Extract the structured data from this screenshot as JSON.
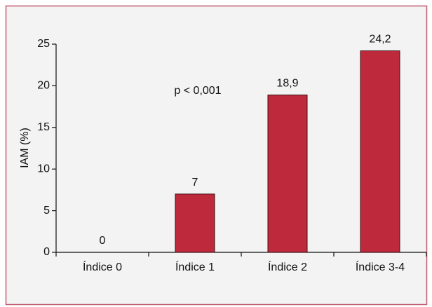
{
  "chart_data": {
    "type": "bar",
    "ylabel": "IAM (%)",
    "annotation": "p < 0,001",
    "categories": [
      "Índice 0",
      "Índice 1",
      "Índice 2",
      "Índice 3-4"
    ],
    "values": [
      0,
      7,
      18.9,
      24.2
    ],
    "value_labels": [
      "0",
      "7",
      "18,9",
      "24,2"
    ],
    "color": "#be2a3c",
    "ylim": [
      0,
      25
    ],
    "yticks": [
      0,
      5,
      10,
      15,
      20,
      25
    ]
  }
}
